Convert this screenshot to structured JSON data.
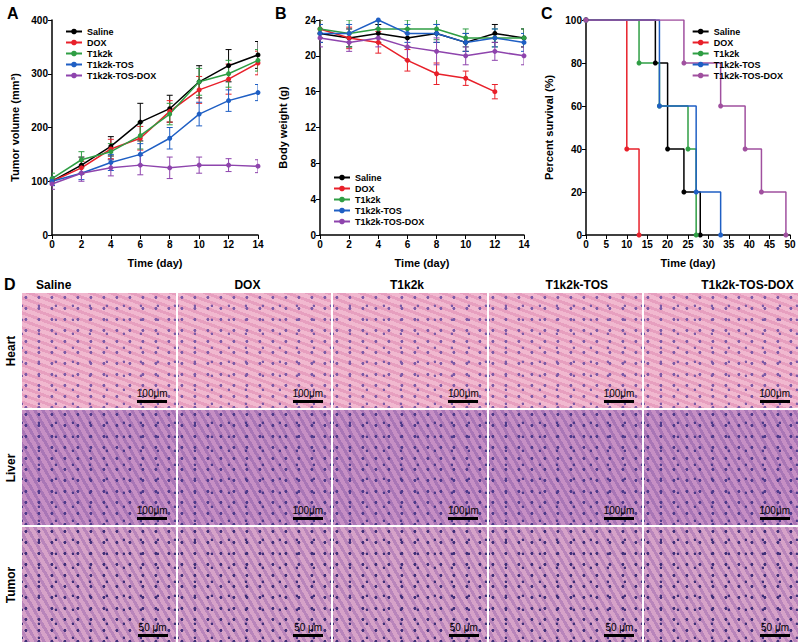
{
  "chart_data": [
    {
      "type": "line",
      "title": "A",
      "x_label": "Time (day)",
      "y_label": "Tumor volume (mm³)",
      "x": [
        0,
        2,
        4,
        6,
        8,
        10,
        12,
        14
      ],
      "xlim": [
        0,
        14
      ],
      "xticks": [
        0,
        2,
        4,
        6,
        8,
        10,
        12,
        14
      ],
      "ylim": [
        0,
        400
      ],
      "yticks": [
        0,
        100,
        200,
        300,
        400
      ],
      "grid": false,
      "legend": "upper left",
      "marker": "circle",
      "series": [
        {
          "name": "Saline",
          "color": "#000000",
          "values": [
            100,
            130,
            165,
            210,
            235,
            285,
            315,
            335
          ],
          "errors": [
            8,
            15,
            18,
            35,
            25,
            30,
            30,
            25
          ]
        },
        {
          "name": "DOX",
          "color": "#e8202a",
          "values": [
            100,
            125,
            160,
            180,
            230,
            270,
            290,
            320
          ],
          "errors": [
            8,
            12,
            18,
            22,
            20,
            25,
            28,
            22
          ]
        },
        {
          "name": "T1k2k",
          "color": "#2f9e44",
          "values": [
            105,
            140,
            155,
            185,
            225,
            285,
            300,
            325
          ],
          "errors": [
            10,
            15,
            15,
            25,
            20,
            25,
            25,
            20
          ]
        },
        {
          "name": "T1k2k-TOS",
          "color": "#1f5fc4",
          "values": [
            100,
            115,
            135,
            150,
            180,
            225,
            250,
            265
          ],
          "errors": [
            8,
            12,
            15,
            20,
            20,
            22,
            20,
            15
          ]
        },
        {
          "name": "T1k2k-TOS-DOX",
          "color": "#8e44ad",
          "values": [
            95,
            115,
            125,
            130,
            125,
            130,
            130,
            128
          ],
          "errors": [
            10,
            15,
            15,
            18,
            20,
            15,
            12,
            12
          ]
        }
      ]
    },
    {
      "type": "line",
      "title": "B",
      "x_label": "Time (day)",
      "y_label": "Body weight (g)",
      "x": [
        0,
        2,
        4,
        6,
        8,
        10,
        12,
        14
      ],
      "xlim": [
        0,
        14
      ],
      "xticks": [
        0,
        2,
        4,
        6,
        8,
        10,
        12,
        14
      ],
      "ylim": [
        0,
        24
      ],
      "yticks": [
        0,
        4,
        8,
        12,
        16,
        20,
        24
      ],
      "grid": false,
      "legend": "lower left",
      "marker": "circle",
      "series": [
        {
          "name": "Saline",
          "color": "#000000",
          "values": [
            22.5,
            22,
            22.5,
            22,
            22.5,
            21.5,
            22.5,
            22
          ],
          "errors": [
            1,
            1,
            1,
            1,
            1,
            1,
            1,
            1
          ]
        },
        {
          "name": "DOX",
          "color": "#e8202a",
          "values": [
            23,
            22,
            21.5,
            19.5,
            18,
            17.5,
            16,
            null
          ],
          "errors": [
            1,
            1.2,
            1.2,
            1.2,
            1.2,
            0.8,
            0.8,
            null
          ]
        },
        {
          "name": "T1k2k",
          "color": "#2f9e44",
          "values": [
            23,
            22.5,
            23,
            23,
            23,
            22,
            22,
            22
          ],
          "errors": [
            1,
            1.5,
            1,
            1,
            1.2,
            1,
            1,
            1
          ]
        },
        {
          "name": "T1k2k-TOS",
          "color": "#1f5fc4",
          "values": [
            22.5,
            22.5,
            24,
            22.5,
            22.5,
            21.5,
            22,
            21.5
          ],
          "errors": [
            1,
            1,
            1,
            1,
            1,
            1,
            1,
            1
          ]
        },
        {
          "name": "T1k2k-TOS-DOX",
          "color": "#8e44ad",
          "values": [
            22,
            21.5,
            22,
            21,
            20.5,
            20,
            20.5,
            20
          ],
          "errors": [
            1,
            1,
            1,
            1.5,
            1.5,
            1,
            1,
            1
          ]
        }
      ]
    },
    {
      "type": "step",
      "title": "C",
      "x_label": "Time (day)",
      "y_label": "Percent survival (%)",
      "xlim": [
        0,
        50
      ],
      "xticks": [
        0,
        5,
        10,
        15,
        20,
        25,
        30,
        35,
        40,
        45,
        50
      ],
      "ylim": [
        0,
        100
      ],
      "yticks": [
        0,
        20,
        40,
        60,
        80,
        100
      ],
      "grid": false,
      "legend": "upper right",
      "marker": "circle",
      "series": [
        {
          "name": "Saline",
          "color": "#000000",
          "x": [
            0,
            17,
            20,
            24,
            28
          ],
          "values": [
            100,
            80,
            40,
            20,
            0
          ]
        },
        {
          "name": "DOX",
          "color": "#e8202a",
          "x": [
            0,
            10,
            13
          ],
          "values": [
            100,
            40,
            0
          ]
        },
        {
          "name": "T1k2k",
          "color": "#2f9e44",
          "x": [
            0,
            13,
            18,
            25,
            27
          ],
          "values": [
            100,
            80,
            60,
            40,
            0
          ]
        },
        {
          "name": "T1k2k-TOS",
          "color": "#1f5fc4",
          "x": [
            0,
            18,
            27,
            33
          ],
          "values": [
            100,
            60,
            20,
            0
          ]
        },
        {
          "name": "T1k2k-TOS-DOX",
          "color": "#a0509f",
          "x": [
            0,
            24,
            33,
            39,
            43,
            49
          ],
          "values": [
            100,
            80,
            60,
            40,
            20,
            0
          ]
        }
      ]
    }
  ],
  "histology": {
    "title": "D",
    "columns": [
      "Saline",
      "DOX",
      "T1k2k",
      "T1k2k-TOS",
      "T1k2k-TOS-DOX"
    ],
    "rows": [
      {
        "label": "Heart",
        "scale_bar": "100μm"
      },
      {
        "label": "Liver",
        "scale_bar": "100μm"
      },
      {
        "label": "Tumor",
        "scale_bar": "50 μm"
      }
    ]
  }
}
